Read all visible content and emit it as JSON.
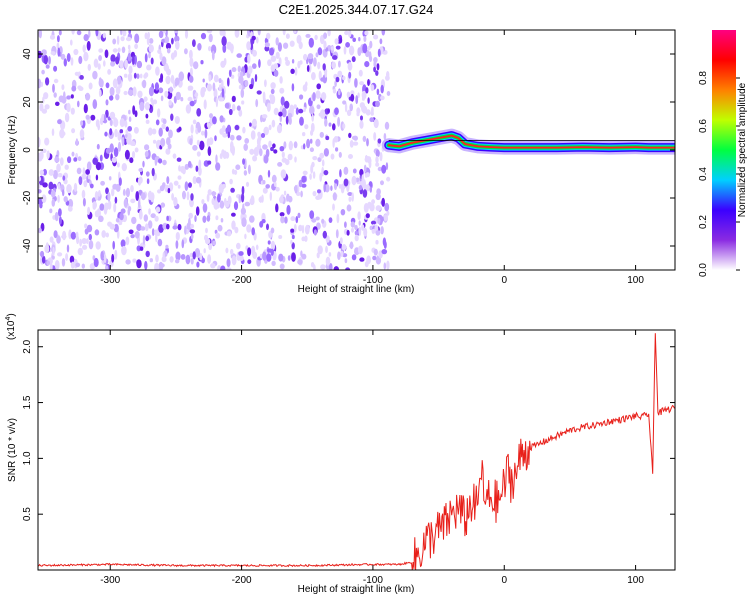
{
  "title": "C2E1.2025.344.07.17.G24",
  "chart_data": [
    {
      "type": "heatmap",
      "xlabel": "Height of straight line (km)",
      "ylabel": "Frequency (Hz)",
      "xlim": [
        -355,
        130
      ],
      "ylim": [
        -50,
        50
      ],
      "xticks": [
        -300,
        -200,
        -100,
        0,
        100
      ],
      "yticks": [
        -40,
        -20,
        0,
        20,
        40
      ],
      "noise_region_x": [
        -355,
        -88
      ],
      "signal_trace": {
        "description_free": true,
        "x": [
          -88,
          -80,
          -70,
          -60,
          -50,
          -40,
          -35,
          -30,
          -20,
          -10,
          0,
          20,
          40,
          60,
          80,
          100,
          110,
          120,
          130
        ],
        "frequency": [
          2.0,
          1.5,
          3.0,
          4.0,
          5.0,
          6.0,
          5.0,
          2.5,
          1.5,
          1.2,
          1.0,
          1.0,
          1.0,
          1.2,
          1.0,
          1.2,
          1.0,
          1.0,
          1.0
        ]
      },
      "colorbar": {
        "label": "Normalized spectral amplitude",
        "range": [
          0.0,
          1.0
        ],
        "ticks": [
          0.0,
          0.2,
          0.4,
          0.6,
          0.8
        ],
        "colors": [
          "#ffffff",
          "#8a2be2",
          "#3b00ff",
          "#00d0ff",
          "#00ff40",
          "#c0ff00",
          "#ff8000",
          "#ff0000",
          "#ff0080"
        ]
      },
      "grid": false
    },
    {
      "type": "line",
      "xlabel": "Height of straight line (km)",
      "ylabel": "SNR (10 * v/v)",
      "y_multiplier": "(x10",
      "y_multiplier_exp": "4",
      "y_multiplier_close": ")",
      "xlim": [
        -355,
        130
      ],
      "ylim": [
        0.0,
        2.15
      ],
      "xticks": [
        -300,
        -200,
        -100,
        0,
        100
      ],
      "yticks": [
        0.5,
        1.0,
        1.5,
        2.0
      ],
      "color": "#e8201a",
      "series": [
        {
          "x": [
            -355,
            -300,
            -250,
            -200,
            -150,
            -100,
            -80,
            -70,
            -65,
            -60,
            -55,
            -50,
            -45,
            -40,
            -35,
            -30,
            -25,
            -20,
            -18,
            -15,
            -10,
            -5,
            0,
            3,
            5,
            8,
            10,
            12,
            15,
            20,
            25,
            30,
            40,
            50,
            60,
            70,
            80,
            90,
            100,
            105,
            110,
            113,
            115,
            117,
            120,
            125,
            130
          ],
          "y": [
            0.04,
            0.05,
            0.04,
            0.04,
            0.04,
            0.05,
            0.05,
            0.07,
            0.15,
            0.25,
            0.3,
            0.35,
            0.4,
            0.5,
            0.55,
            0.45,
            0.6,
            0.55,
            0.95,
            0.6,
            0.65,
            0.6,
            0.75,
            0.9,
            0.8,
            0.85,
            0.9,
            1.0,
            1.05,
            1.1,
            1.12,
            1.15,
            1.2,
            1.25,
            1.28,
            1.3,
            1.33,
            1.35,
            1.38,
            1.37,
            1.4,
            0.85,
            2.15,
            1.4,
            1.42,
            1.44,
            1.45
          ]
        }
      ],
      "grid": false
    }
  ]
}
